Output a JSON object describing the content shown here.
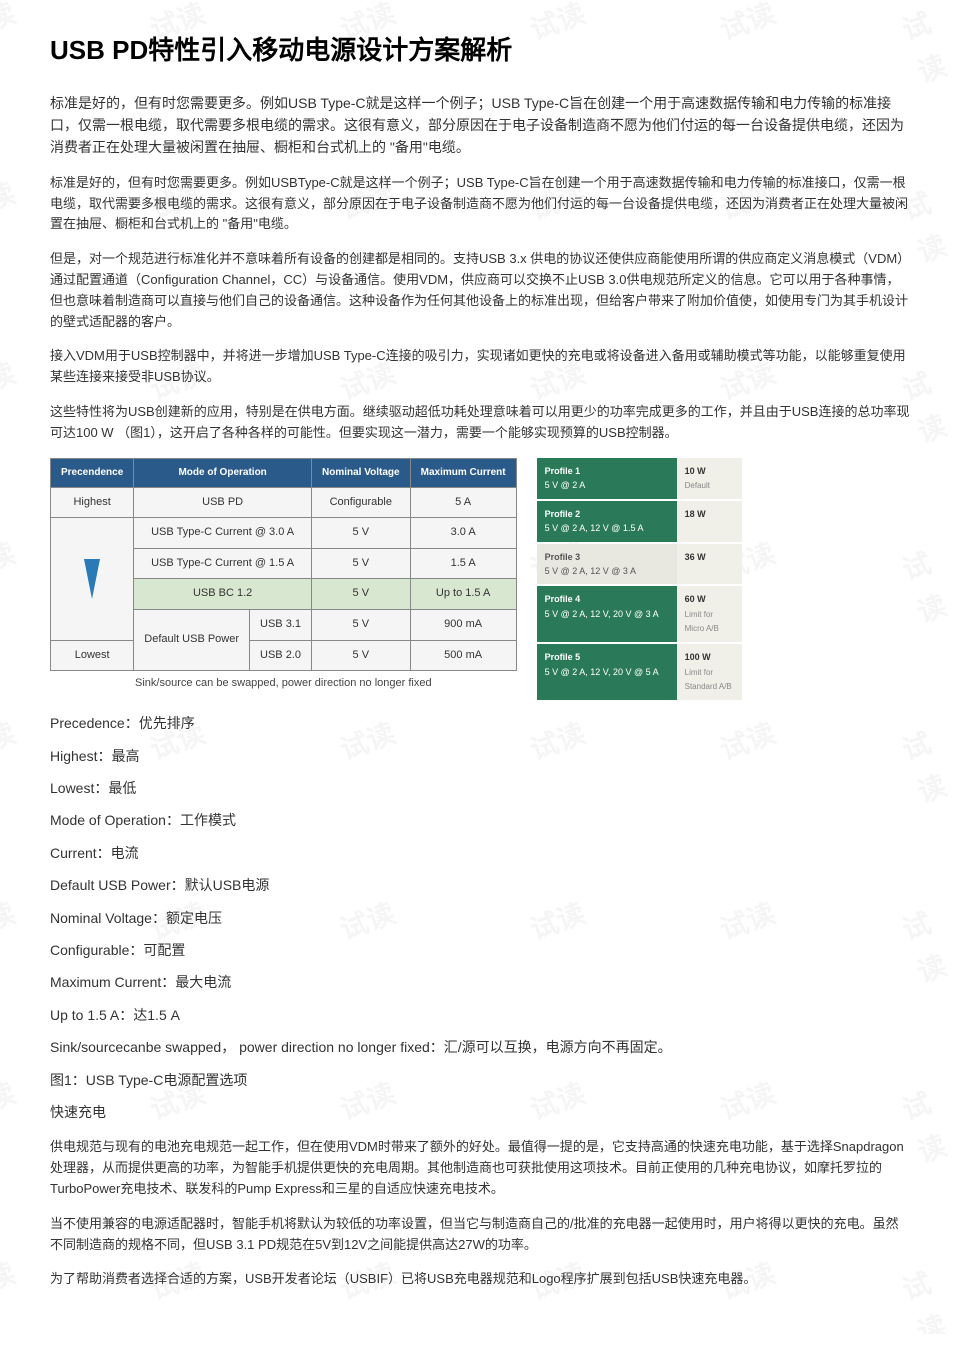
{
  "title": "USB PD特性引入移动电源设计方案解析",
  "watermark": "试读",
  "paragraphs": {
    "p1": "标准是好的，但有时您需要更多。例如USB Type-C就是这样一个例子；USB Type-C旨在创建一个用于高速数据传输和电力传输的标准接口，仅需一根电缆，取代需要多根电缆的需求。这很有意义，部分原因在于电子设备制造商不愿为他们付运的每一台设备提供电缆，还因为消费者正在处理大量被闲置在抽屉、橱柜和台式机上的 \"备用\"电缆。",
    "p2": "标准是好的，但有时您需要更多。例如USBType-C就是这样一个例子；USB Type-C旨在创建一个用于高速数据传输和电力传输的标准接口，仅需一根电缆，取代需要多根电缆的需求。这很有意义，部分原因在于电子设备制造商不愿为他们付运的每一台设备提供电缆，还因为消费者正在处理大量被闲置在抽屉、橱柜和台式机上的 \"备用\"电缆。",
    "p3": "但是，对一个规范进行标准化并不意味着所有设备的创建都是相同的。支持USB 3.x 供电的协议还使供应商能使用所谓的供应商定义消息模式（VDM）通过配置通道（Configuration Channel，CC）与设备通信。使用VDM，供应商可以交换不止USB 3.0供电规范所定义的信息。它可以用于各种事情，但也意味着制造商可以直接与他们自己的设备通信。这种设备作为任何其他设备上的标准出现，但给客户带来了附加价值使，如使用专门为其手机设计的壁式适配器的客户。",
    "p4": "接入VDM用于USB控制器中，并将进一步增加USB Type-C连接的吸引力，实现诸如更快的充电或将设备进入备用或辅助模式等功能，以能够重复使用某些连接来接受非USB协议。",
    "p5": "这些特性将为USB创建新的应用，特别是在供电方面。继续驱动超低功耗处理意味着可以用更少的功率完成更多的工作，并且由于USB连接的总功率现可达100 W （图1），这开启了各种各样的可能性。但要实现这一潜力，需要一个能够实现预算的USB控制器。",
    "caption": "Sink/source can be swapped, power direction no longer fixed",
    "fast_charge_heading": "快速充电",
    "p6": "供电规范与现有的电池充电规范一起工作，但在使用VDM时带来了额外的好处。最值得一提的是，它支持高通的快速充电功能，基于选择Snapdragon处理器，从而提供更高的功率，为智能手机提供更快的充电周期。其他制造商也可获批使用这项技术。目前正使用的几种充电协议，如摩托罗拉的TurboPower充电技术、联发科的Pump Express和三星的自适应快速充电技术。",
    "p7": "当不使用兼容的电源适配器时，智能手机将默认为较低的功率设置，但当它与制造商自己的/批准的充电器一起使用时，用户将得以更快的充电。虽然不同制造商的规格不同，但USB 3.1 PD规范在5V到12V之间能提供高达27W的功率。",
    "p8": "为了帮助消费者选择合适的方案，USB开发者论坛（USBIF）已将USB充电器规范和Logo程序扩展到包括USB快速充电器。"
  },
  "table": {
    "headers": {
      "precedence": "Precendence",
      "mode": "Mode of Operation",
      "voltage": "Nominal Voltage",
      "current": "Maximum Current"
    },
    "highest": "Highest",
    "lowest": "Lowest",
    "rows": [
      {
        "mode": "USB PD",
        "voltage": "Configurable",
        "current": "5 A"
      },
      {
        "mode": "USB Type-C Current @ 3.0 A",
        "voltage": "5 V",
        "current": "3.0 A"
      },
      {
        "mode": "USB Type-C Current @ 1.5 A",
        "voltage": "5 V",
        "current": "1.5 A"
      },
      {
        "mode": "USB BC 1.2",
        "voltage": "5 V",
        "current": "Up to 1.5 A",
        "highlight": true
      },
      {
        "mode": "Default USB Power",
        "sub1": "USB 3.1",
        "v1": "5 V",
        "c1": "900 mA",
        "sub2": "USB 2.0",
        "v2": "5 V",
        "c2": "500 mA"
      }
    ]
  },
  "profiles": [
    {
      "name": "Profile 1",
      "detail": "5 V @ 2 A",
      "power": "10 W",
      "note": "Default",
      "light": false
    },
    {
      "name": "Profile 2",
      "detail": "5 V @ 2 A, 12 V @ 1.5 A",
      "power": "18 W",
      "note": "",
      "light": false
    },
    {
      "name": "Profile 3",
      "detail": "5 V @ 2 A, 12 V @ 3 A",
      "power": "36 W",
      "note": "",
      "light": true
    },
    {
      "name": "Profile 4",
      "detail": "5 V @ 2 A, 12 V, 20 V @ 3 A",
      "power": "60 W",
      "note": "Limit for Micro A/B",
      "light": false
    },
    {
      "name": "Profile 5",
      "detail": "5 V @ 2 A, 12 V, 20 V @ 5 A",
      "power": "100 W",
      "note": "Limit for Standard A/B",
      "light": false
    }
  ],
  "defs": [
    "Precedence：优先排序",
    "Highest：最高",
    "Lowest：最低",
    "Mode of Operation：工作模式",
    "Current：电流",
    "Default USB Power：默认USB电源",
    "Nominal Voltage：额定电压",
    "Configurable：可配置",
    "Maximum Current：最大电流",
    "Up to 1.5 A：达1.5 A",
    "Sink/sourcecanbe swapped， power direction no longer fixed：汇/源可以互换，电源方向不再固定。",
    "图1：USB Type-C电源配置选项"
  ]
}
